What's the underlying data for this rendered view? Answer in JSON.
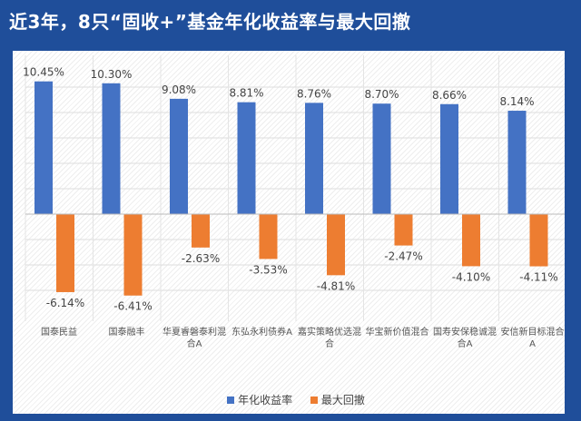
{
  "title": "近3年，8只“固收+”基金年化收益率与最大回撤",
  "chart_data": {
    "type": "bar",
    "title": "近3年，8只“固收+”基金年化收益率与最大回撤",
    "categories": [
      "国泰民益",
      "国泰融丰",
      "华夏睿磐泰利混合A",
      "东弘永利债券A",
      "嘉实策略优选混合",
      "华宝新价值混合",
      "国寿安保稳诚混合A",
      "安信新目标混合A"
    ],
    "series": [
      {
        "name": "年化收益率",
        "color": "#4472c4",
        "values": [
          10.45,
          10.3,
          9.08,
          8.81,
          8.76,
          8.7,
          8.66,
          8.14
        ],
        "labels": [
          "10.45%",
          "10.30%",
          "9.08%",
          "8.81%",
          "8.76%",
          "8.70%",
          "8.66%",
          "8.14%"
        ]
      },
      {
        "name": "最大回撤",
        "color": "#ed7d31",
        "values": [
          -6.14,
          -6.41,
          -2.63,
          -3.53,
          -4.81,
          -2.47,
          -4.1,
          -4.11
        ],
        "labels": [
          "-6.14%",
          "-6.41%",
          "-2.63%",
          "-3.53%",
          "-4.81%",
          "-2.47%",
          "-4.10%",
          "-4.11%"
        ]
      }
    ],
    "ylim": [
      -8,
      12
    ],
    "grid": true,
    "legend": "bottom"
  }
}
